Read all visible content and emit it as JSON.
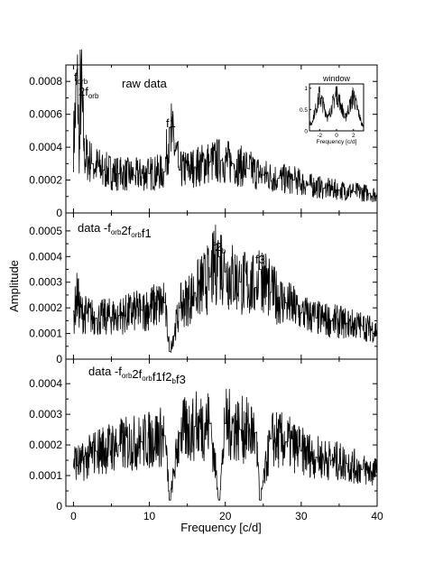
{
  "figure": {
    "ylabel": "Amplitude",
    "xlabel": "Frequency [c/d]",
    "x_ticks": [
      "0",
      "10",
      "20",
      "30",
      "40"
    ]
  },
  "chart_data": [
    {
      "type": "line",
      "panel": "top",
      "annotation": "raw data",
      "xlim": [
        -1,
        40
      ],
      "ylim": [
        0,
        0.0009
      ],
      "y_ticks": [
        "0",
        "0.0002",
        "0.0004",
        "0.0006",
        "0.0008"
      ],
      "peak_labels": [
        {
          "label": "f",
          "sub": "orb",
          "x": 0.5
        },
        {
          "label": "2f",
          "sub": "orb",
          "x": 1.0
        },
        {
          "label": "f1",
          "x": 12.7
        }
      ],
      "series": [
        {
          "points": [
            [
              0,
              0.00045
            ],
            [
              0.5,
              0.00075
            ],
            [
              0.8,
              0.0004
            ],
            [
              1.0,
              0.00072
            ],
            [
              1.5,
              0.00035
            ],
            [
              2.5,
              0.0003
            ],
            [
              4,
              0.00026
            ],
            [
              6,
              0.00024
            ],
            [
              8,
              0.00023
            ],
            [
              10,
              0.00024
            ],
            [
              12,
              0.00025
            ],
            [
              12.7,
              0.00052
            ],
            [
              14,
              0.00026
            ],
            [
              16,
              0.00028
            ],
            [
              18,
              0.00031
            ],
            [
              19.5,
              0.00032
            ],
            [
              21,
              0.0003
            ],
            [
              23,
              0.00027
            ],
            [
              25,
              0.00023
            ],
            [
              27,
              0.00021
            ],
            [
              29,
              0.0002
            ],
            [
              31,
              0.00017
            ],
            [
              33,
              0.00015
            ],
            [
              35,
              0.00014
            ],
            [
              37,
              0.00013
            ],
            [
              39,
              0.00012
            ],
            [
              40,
              0.00011
            ]
          ]
        }
      ],
      "inset": {
        "title": "window",
        "xlabel": "Frequency [c/d]",
        "x_ticks": [
          "-2",
          "0",
          "2"
        ],
        "y_ticks": [
          "0",
          "0.5",
          "1"
        ],
        "xlim": [
          -3.2,
          3.2
        ],
        "ylim": [
          0,
          1.1
        ],
        "points": [
          [
            -3,
            0.18
          ],
          [
            -2,
            0.9
          ],
          [
            -1,
            0.35
          ],
          [
            0,
            1.0
          ],
          [
            1,
            0.35
          ],
          [
            2,
            0.9
          ],
          [
            3,
            0.18
          ]
        ]
      }
    },
    {
      "type": "line",
      "panel": "middle",
      "annotation": "data -forb2forbf1",
      "xlim": [
        -1,
        40
      ],
      "ylim": [
        0,
        0.00057
      ],
      "y_ticks": [
        "0",
        "0.0001",
        "0.0002",
        "0.0003",
        "0.0004",
        "0.0005"
      ],
      "peak_labels": [
        {
          "label": "f2",
          "sub": "b",
          "x": 19.2
        },
        {
          "label": "f3",
          "x": 24.6
        }
      ],
      "series": [
        {
          "points": [
            [
              0,
              0.00017
            ],
            [
              0.5,
              0.00024
            ],
            [
              1,
              0.00018
            ],
            [
              3,
              0.00016
            ],
            [
              6,
              0.00017
            ],
            [
              9,
              0.00019
            ],
            [
              12,
              0.00022
            ],
            [
              12.7,
              3e-05
            ],
            [
              14,
              0.0002
            ],
            [
              16,
              0.00026
            ],
            [
              18,
              0.00032
            ],
            [
              19.2,
              0.0004
            ],
            [
              20,
              0.00034
            ],
            [
              22,
              0.0003
            ],
            [
              24,
              0.00028
            ],
            [
              24.6,
              0.00035
            ],
            [
              26,
              0.00026
            ],
            [
              28,
              0.00022
            ],
            [
              30,
              0.00018
            ],
            [
              32,
              0.00016
            ],
            [
              34,
              0.00015
            ],
            [
              36,
              0.00014
            ],
            [
              38,
              0.00013
            ],
            [
              40,
              0.00011
            ]
          ]
        }
      ]
    },
    {
      "type": "line",
      "panel": "bottom",
      "annotation": "data -forb2forbf1f2bf3",
      "xlim": [
        -1,
        40
      ],
      "ylim": [
        0,
        0.00048
      ],
      "y_ticks": [
        "0",
        "0.0001",
        "0.0002",
        "0.0003",
        "0.0004"
      ],
      "series": [
        {
          "points": [
            [
              0,
              0.00015
            ],
            [
              1,
              0.00014
            ],
            [
              3,
              0.00018
            ],
            [
              6,
              0.0002
            ],
            [
              9,
              0.00021
            ],
            [
              12,
              0.00023
            ],
            [
              12.7,
              2e-05
            ],
            [
              14,
              0.00024
            ],
            [
              16,
              0.00026
            ],
            [
              18,
              0.00027
            ],
            [
              19.2,
              2e-05
            ],
            [
              20,
              0.00027
            ],
            [
              22,
              0.00025
            ],
            [
              24,
              0.00024
            ],
            [
              24.6,
              2e-05
            ],
            [
              26,
              0.00022
            ],
            [
              28,
              0.00021
            ],
            [
              30,
              0.00018
            ],
            [
              32,
              0.00016
            ],
            [
              34,
              0.00015
            ],
            [
              36,
              0.00014
            ],
            [
              38,
              0.00012
            ],
            [
              40,
              0.00011
            ]
          ]
        }
      ]
    }
  ]
}
